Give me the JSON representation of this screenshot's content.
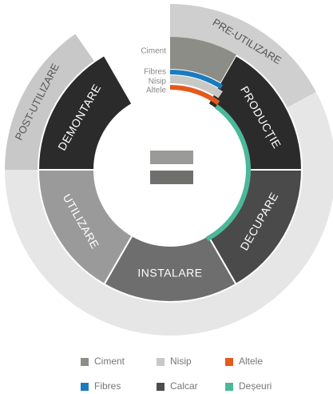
{
  "outer_ring": {
    "pre_use": "PRE-UTILIZARE",
    "post_use": "POST-UTILIZARE"
  },
  "stages": [
    "PRODUCȚIE",
    "DECUPARE",
    "INSTALARE",
    "UTILIZARE",
    "DEMONTARE"
  ],
  "material_labels": [
    "Ciment",
    "Fibres",
    "Nisip",
    "Altele"
  ],
  "legend": [
    "Ciment",
    "Nisip",
    "Altele",
    "Fibres",
    "Calcar",
    "Deșeuri"
  ]
}
